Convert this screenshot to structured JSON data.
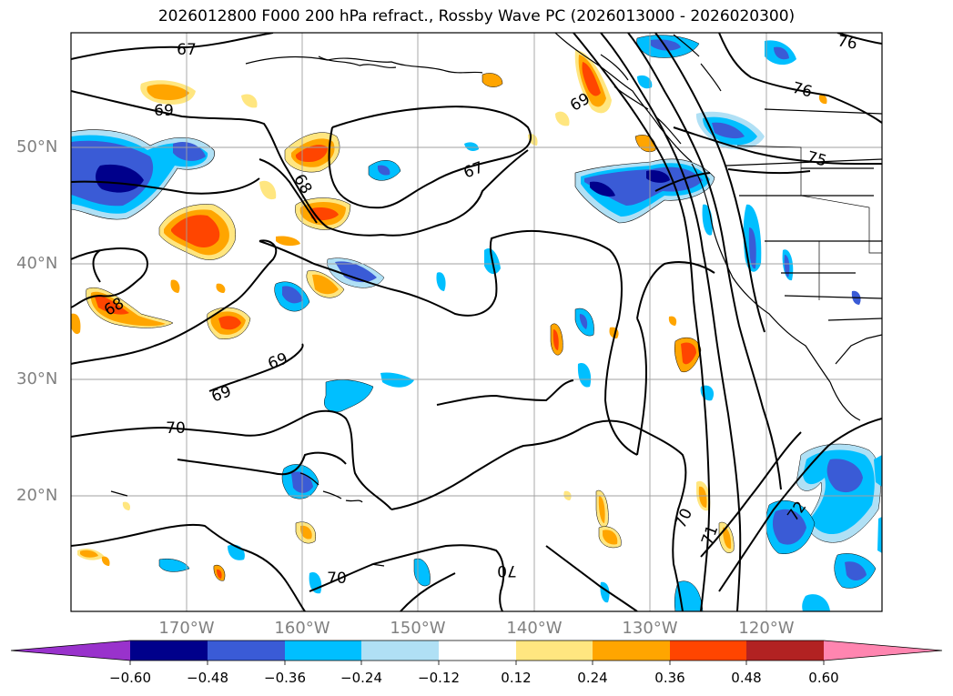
{
  "title": "2026012800 F000 200 hPa refract., Rossby Wave PC (2026013000 - 2026020300)",
  "lat_labels": [
    "50°N",
    "40°N",
    "30°N",
    "20°N"
  ],
  "lon_labels": [
    "170°W",
    "160°W",
    "150°W",
    "140°W",
    "130°W",
    "120°W"
  ],
  "contour_labels": [
    "67",
    "69",
    "68",
    "67",
    "69",
    "68",
    "69",
    "69",
    "70",
    "70",
    "70",
    "71",
    "72",
    "75",
    "76",
    "76"
  ],
  "colorbar": {
    "ticks": [
      "−0.60",
      "−0.48",
      "−0.36",
      "−0.24",
      "−0.12",
      "0.12",
      "0.24",
      "0.36",
      "0.48",
      "0.60"
    ],
    "colors": [
      "#9932cc",
      "#00008b",
      "#3a5bd6",
      "#00bfff",
      "#b0e0f5",
      "#ffffff",
      "#ffe680",
      "#ffa500",
      "#ff4500",
      "#b22222",
      "#ff85b0"
    ]
  }
}
